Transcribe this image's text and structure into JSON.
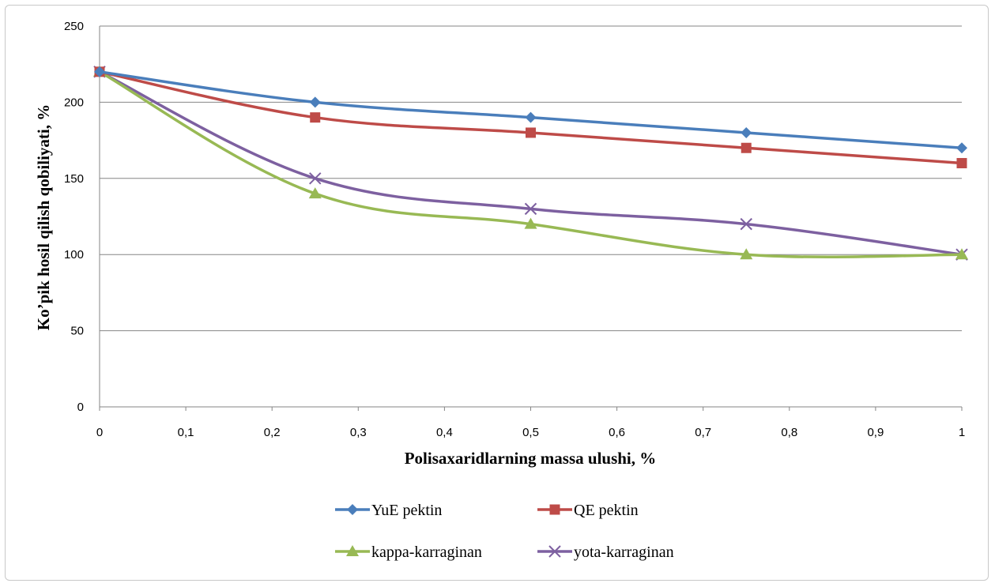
{
  "chart_data": {
    "type": "line",
    "title": "",
    "xlabel": "Polisaxaridlarning  massa ulushi, %",
    "ylabel": "Ko’pik hosil qilish qobiliyati, %",
    "xlim": [
      0,
      1
    ],
    "ylim": [
      0,
      250
    ],
    "x_ticks": [
      "0",
      "0,1",
      "0,2",
      "0,3",
      "0,4",
      "0,5",
      "0,6",
      "0,7",
      "0,8",
      "0,9",
      "1"
    ],
    "y_ticks": [
      "0",
      "50",
      "100",
      "150",
      "200",
      "250"
    ],
    "x": [
      0,
      0.25,
      0.5,
      0.75,
      1
    ],
    "grid": "horizontal",
    "legend_position": "bottom",
    "series": [
      {
        "name": "YuE pektin",
        "values": [
          220,
          200,
          190,
          180,
          170
        ],
        "color": "#4a7ebb",
        "marker": "diamond"
      },
      {
        "name": "QE pektin",
        "values": [
          220,
          190,
          180,
          170,
          160
        ],
        "color": "#be4b48",
        "marker": "square"
      },
      {
        "name": "kappa-karraginan",
        "values": [
          220,
          140,
          120,
          100,
          100
        ],
        "color": "#98b954",
        "marker": "triangle"
      },
      {
        "name": "yota-karraginan",
        "values": [
          220,
          150,
          130,
          120,
          100
        ],
        "color": "#7d60a0",
        "marker": "x"
      }
    ]
  }
}
